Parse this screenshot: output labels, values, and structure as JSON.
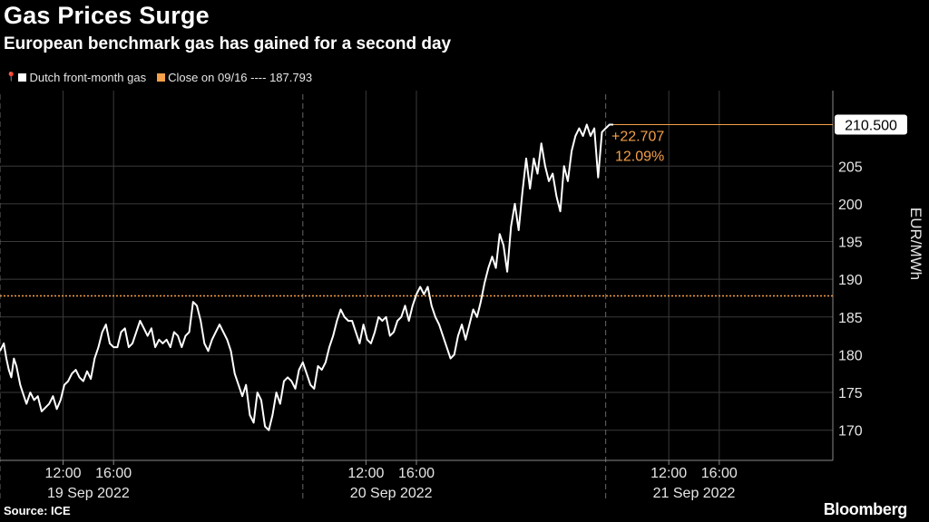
{
  "header": {
    "title": "Gas Prices Surge",
    "subtitle": "European benchmark gas has gained for a second day"
  },
  "legend": {
    "series_label": "Dutch front-month gas",
    "close_label": "Close on 09/16 ---- 187.793"
  },
  "footer": {
    "source": "Source: ICE",
    "brand": "Bloomberg"
  },
  "colors": {
    "background": "#000000",
    "line": "#ffffff",
    "accent": "#f5a04a",
    "grid": "#3a3a3a"
  },
  "chart_data": {
    "type": "line",
    "ylabel": "EUR/MWh",
    "ylim": [
      166,
      215
    ],
    "yticks": [
      170,
      175,
      180,
      185,
      190,
      195,
      200,
      205
    ],
    "reference_value": 187.793,
    "last_value": 210.5,
    "last_value_label": "210.500",
    "change_label": "+22.707",
    "change_pct_label": "12.09%",
    "xlim_hours": [
      0,
      66
    ],
    "xticks": [
      {
        "h": 5,
        "label": "12:00"
      },
      {
        "h": 9,
        "label": "16:00"
      },
      {
        "h": 29,
        "label": "12:00"
      },
      {
        "h": 33,
        "label": "16:00"
      },
      {
        "h": 53,
        "label": "12:00"
      },
      {
        "h": 57,
        "label": "16:00"
      }
    ],
    "day_labels": [
      {
        "h": 7,
        "label": "19 Sep 2022"
      },
      {
        "h": 31,
        "label": "20 Sep 2022"
      },
      {
        "h": 55,
        "label": "21 Sep 2022"
      }
    ],
    "day_dividers_h": [
      0,
      24,
      48
    ],
    "series": [
      {
        "name": "Dutch front-month gas",
        "points": [
          [
            0.0,
            180.5
          ],
          [
            0.3,
            181.5
          ],
          [
            0.5,
            179.5
          ],
          [
            0.7,
            178.0
          ],
          [
            0.9,
            177.0
          ],
          [
            1.1,
            179.5
          ],
          [
            1.3,
            178.5
          ],
          [
            1.6,
            176.0
          ],
          [
            1.8,
            175.0
          ],
          [
            2.1,
            173.5
          ],
          [
            2.4,
            175.0
          ],
          [
            2.7,
            174.0
          ],
          [
            3.0,
            174.5
          ],
          [
            3.3,
            172.5
          ],
          [
            3.6,
            173.0
          ],
          [
            3.9,
            173.5
          ],
          [
            4.2,
            174.5
          ],
          [
            4.5,
            172.8
          ],
          [
            4.8,
            174.0
          ],
          [
            5.1,
            176.0
          ],
          [
            5.4,
            176.5
          ],
          [
            5.7,
            177.5
          ],
          [
            6.0,
            178.0
          ],
          [
            6.3,
            177.0
          ],
          [
            6.6,
            176.5
          ],
          [
            6.9,
            177.8
          ],
          [
            7.2,
            176.8
          ],
          [
            7.5,
            179.5
          ],
          [
            7.8,
            181.0
          ],
          [
            8.1,
            183.0
          ],
          [
            8.4,
            184.0
          ],
          [
            8.7,
            181.5
          ],
          [
            9.0,
            181.0
          ],
          [
            9.3,
            181.0
          ],
          [
            9.6,
            183.0
          ],
          [
            9.9,
            183.5
          ],
          [
            10.2,
            181.0
          ],
          [
            10.5,
            181.5
          ],
          [
            10.8,
            183.0
          ],
          [
            11.1,
            184.5
          ],
          [
            11.4,
            183.5
          ],
          [
            11.7,
            182.5
          ],
          [
            12.0,
            183.5
          ],
          [
            12.3,
            181.0
          ],
          [
            12.6,
            182.0
          ],
          [
            12.9,
            181.5
          ],
          [
            13.2,
            182.0
          ],
          [
            13.5,
            181.0
          ],
          [
            13.8,
            183.0
          ],
          [
            14.1,
            182.5
          ],
          [
            14.4,
            181.0
          ],
          [
            14.7,
            182.5
          ],
          [
            15.0,
            183.0
          ],
          [
            15.3,
            187.0
          ],
          [
            15.6,
            186.5
          ],
          [
            15.9,
            184.5
          ],
          [
            16.2,
            181.5
          ],
          [
            16.5,
            180.5
          ],
          [
            16.8,
            182.0
          ],
          [
            17.1,
            183.0
          ],
          [
            17.4,
            184.0
          ],
          [
            17.7,
            183.0
          ],
          [
            18.0,
            182.0
          ],
          [
            18.3,
            180.5
          ],
          [
            18.6,
            177.5
          ],
          [
            18.9,
            176.0
          ],
          [
            19.2,
            174.5
          ],
          [
            19.5,
            176.0
          ],
          [
            19.8,
            172.0
          ],
          [
            20.1,
            171.0
          ],
          [
            20.4,
            175.0
          ],
          [
            20.7,
            174.0
          ],
          [
            21.0,
            170.5
          ],
          [
            21.3,
            170.0
          ],
          [
            21.6,
            172.0
          ],
          [
            21.9,
            175.0
          ],
          [
            22.2,
            173.5
          ],
          [
            22.5,
            176.5
          ],
          [
            22.8,
            177.0
          ],
          [
            23.1,
            176.5
          ],
          [
            23.4,
            175.5
          ],
          [
            23.7,
            178.0
          ],
          [
            24.0,
            179.0
          ],
          [
            24.3,
            177.5
          ],
          [
            24.6,
            176.0
          ],
          [
            24.9,
            175.5
          ],
          [
            25.2,
            178.5
          ],
          [
            25.5,
            178.0
          ],
          [
            25.8,
            179.0
          ],
          [
            26.1,
            181.0
          ],
          [
            26.4,
            182.5
          ],
          [
            26.7,
            184.5
          ],
          [
            27.0,
            186.0
          ],
          [
            27.3,
            185.0
          ],
          [
            27.6,
            184.5
          ],
          [
            27.9,
            184.5
          ],
          [
            28.2,
            183.0
          ],
          [
            28.5,
            181.5
          ],
          [
            28.8,
            184.0
          ],
          [
            29.1,
            182.0
          ],
          [
            29.4,
            181.5
          ],
          [
            29.7,
            183.0
          ],
          [
            30.0,
            185.0
          ],
          [
            30.3,
            184.5
          ],
          [
            30.6,
            185.0
          ],
          [
            30.9,
            182.5
          ],
          [
            31.2,
            183.0
          ],
          [
            31.5,
            184.5
          ],
          [
            31.8,
            185.0
          ],
          [
            32.1,
            186.5
          ],
          [
            32.4,
            184.5
          ],
          [
            32.7,
            186.5
          ],
          [
            33.0,
            188.0
          ],
          [
            33.3,
            189.0
          ],
          [
            33.6,
            188.0
          ],
          [
            33.9,
            189.0
          ],
          [
            34.2,
            186.5
          ],
          [
            34.5,
            185.0
          ],
          [
            34.8,
            184.0
          ],
          [
            35.1,
            182.5
          ],
          [
            35.4,
            181.0
          ],
          [
            35.7,
            179.5
          ],
          [
            36.0,
            180.0
          ],
          [
            36.3,
            182.5
          ],
          [
            36.6,
            184.0
          ],
          [
            36.9,
            182.0
          ],
          [
            37.2,
            184.0
          ],
          [
            37.5,
            186.0
          ],
          [
            37.8,
            185.0
          ],
          [
            38.1,
            187.0
          ],
          [
            38.4,
            189.5
          ],
          [
            38.7,
            191.5
          ],
          [
            39.0,
            193.0
          ],
          [
            39.3,
            191.5
          ],
          [
            39.6,
            196.0
          ],
          [
            39.9,
            194.5
          ],
          [
            40.2,
            191.0
          ],
          [
            40.5,
            197.0
          ],
          [
            40.8,
            200.0
          ],
          [
            41.1,
            196.5
          ],
          [
            41.4,
            201.5
          ],
          [
            41.7,
            206.0
          ],
          [
            42.0,
            202.0
          ],
          [
            42.3,
            206.0
          ],
          [
            42.6,
            204.0
          ],
          [
            42.9,
            208.0
          ],
          [
            43.2,
            205.0
          ],
          [
            43.5,
            203.0
          ],
          [
            43.8,
            204.0
          ],
          [
            44.1,
            201.0
          ],
          [
            44.4,
            199.0
          ],
          [
            44.7,
            205.0
          ],
          [
            45.0,
            203.0
          ],
          [
            45.3,
            207.0
          ],
          [
            45.6,
            209.0
          ],
          [
            45.9,
            210.0
          ],
          [
            46.2,
            209.0
          ],
          [
            46.5,
            210.5
          ],
          [
            46.8,
            209.0
          ],
          [
            47.1,
            210.0
          ],
          [
            47.4,
            203.5
          ],
          [
            47.7,
            209.5
          ],
          [
            48.0,
            210.0
          ],
          [
            48.3,
            210.5
          ],
          [
            48.6,
            210.5
          ]
        ]
      }
    ]
  }
}
